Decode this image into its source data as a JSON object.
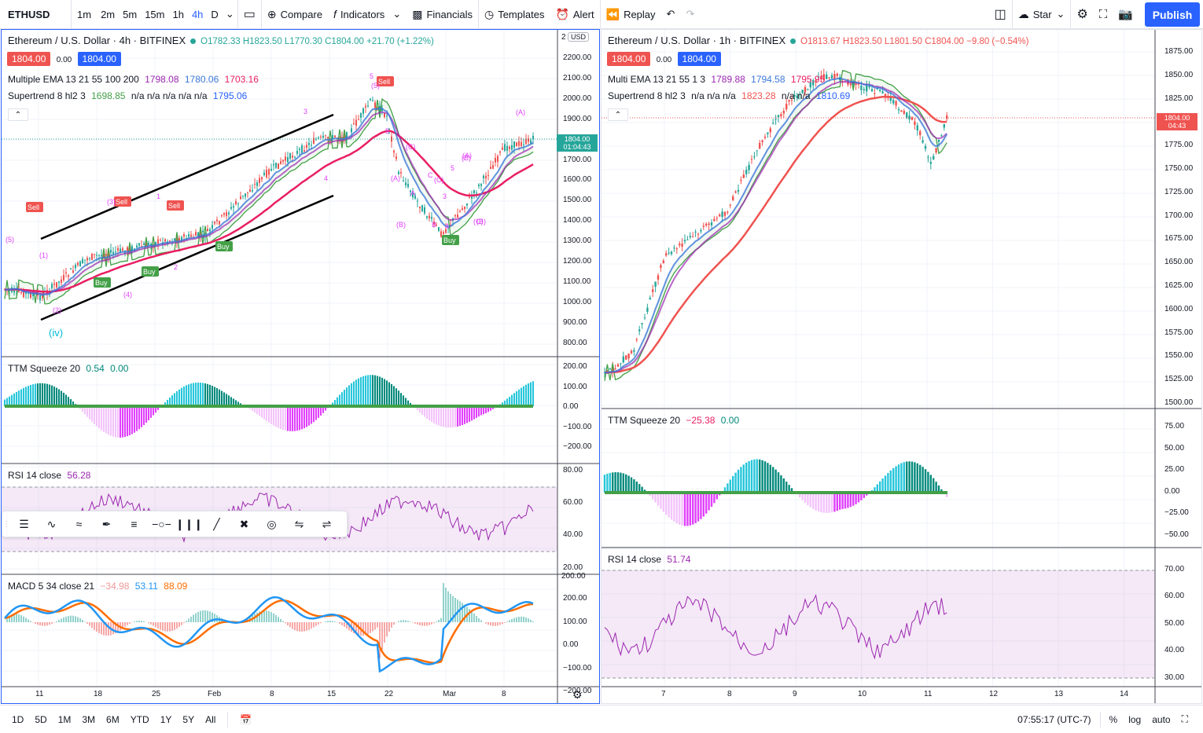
{
  "topbar": {
    "symbol": "ETHUSD",
    "intervals": [
      "1m",
      "2m",
      "5m",
      "15m",
      "1h",
      "4h",
      "D"
    ],
    "active_interval": "4h",
    "compare": "Compare",
    "indicators": "Indicators",
    "financials": "Financials",
    "templates": "Templates",
    "alert": "Alert",
    "replay": "Replay",
    "star": "Star",
    "publish": "Publish"
  },
  "left": {
    "title": "Ethereum / U.S. Dollar · 4h · BITFINEX",
    "ohlc": "O1782.33 H1823.50 L1770.30 C1804.00 +21.70 (+1.22%)",
    "bid": "1804.00",
    "spread": "0.00",
    "ask": "1804.00",
    "ema_label": "Multiple EMA 13 21 55 100 200",
    "ema_values": [
      "1798.08",
      "1780.06",
      "1703.16"
    ],
    "st_label": "Supertrend 8 hl2 3",
    "st_values": [
      "1698.85",
      "n/a n/a n/a n/a n/a",
      "1795.06"
    ],
    "currency": "USD",
    "last_price": "1804.00",
    "countdown": "01:04:43",
    "price_axis": [
      "2200.00",
      "2100.00",
      "2000.00",
      "1900.00",
      "1800.00",
      "1700.00",
      "1600.00",
      "1500.00",
      "1400.00",
      "1300.00",
      "1200.00",
      "1100.00",
      "1000.00",
      "900.00",
      "800.00"
    ],
    "price_axis_top": "2",
    "ttm_label": "TTM Squeeze 20",
    "ttm_values": [
      "0.54",
      "0.00"
    ],
    "ttm_axis": [
      "200.00",
      "100.00",
      "0.00",
      "−100.00",
      "−200.00"
    ],
    "rsi_label": "RSI 14 close",
    "rsi_value": "56.28",
    "rsi_axis": [
      "80.00",
      "60.00",
      "40.00",
      "20.00"
    ],
    "macd_label": "MACD 5 34 close 21",
    "macd_values": [
      "−34.98",
      "53.11",
      "88.09"
    ],
    "macd_axis": [
      "200.00",
      "100.00",
      "0.00",
      "−100.00",
      "−200.00"
    ],
    "macd_axis_top": "200.00",
    "x_axis": [
      "11",
      "18",
      "25",
      "Feb",
      "8",
      "15",
      "22",
      "Mar",
      "8"
    ],
    "wave_labels": [
      "(5)",
      "(iv)",
      "(1)",
      "(2)",
      "(3)",
      "(4)",
      "1",
      "2",
      "3",
      "4",
      "5",
      "(5)",
      "5",
      "(A)",
      "(B)",
      "(C)",
      "A",
      "B",
      "C",
      "(A)",
      "(B)",
      "(C)",
      "3",
      "4",
      "5",
      "(A)",
      "(B)",
      "(C)"
    ],
    "signals": {
      "sell": "Sell",
      "buy": "Buy"
    }
  },
  "right": {
    "title": "Ethereum / U.S. Dollar · 1h · BITFINEX",
    "ohlc": "O1813.67 H1823.50 L1801.50 C1804.00 −9.80 (−0.54%)",
    "bid": "1804.00",
    "spread": "0.00",
    "ask": "1804.00",
    "ema_label": "Multi EMA 13 21 55 1 3",
    "ema_values": [
      "1789.88",
      "1794.58",
      "1795.95"
    ],
    "st_label": "Supertrend 8 hl2 3",
    "st_values": [
      "n/a n/a n/a",
      "1823.28",
      "n/a n/a",
      "1810.69"
    ],
    "last_price": "1804.00",
    "countdown": "04:43",
    "price_axis": [
      "1875.00",
      "1850.00",
      "1825.00",
      "1800.00",
      "1775.00",
      "1750.00",
      "1725.00",
      "1700.00",
      "1675.00",
      "1650.00",
      "1625.00",
      "1600.00",
      "1575.00",
      "1550.00",
      "1525.00",
      "1500.00"
    ],
    "ttm_label": "TTM Squeeze 20",
    "ttm_values": [
      "−25.38",
      "0.00"
    ],
    "ttm_axis": [
      "75.00",
      "50.00",
      "25.00",
      "0.00",
      "−25.00",
      "−50.00"
    ],
    "rsi_label": "RSI 14 close",
    "rsi_value": "51.74",
    "rsi_axis": [
      "70.00",
      "60.00",
      "50.00",
      "40.00",
      "30.00"
    ],
    "x_axis": [
      "7",
      "8",
      "9",
      "10",
      "11",
      "12",
      "13",
      "14"
    ]
  },
  "bottombar": {
    "ranges": [
      "1D",
      "5D",
      "1M",
      "3M",
      "6M",
      "YTD",
      "1Y",
      "5Y",
      "All"
    ],
    "time": "07:55:17 (UTC-7)",
    "percent": "%",
    "log": "log",
    "auto": "auto"
  },
  "colors": {
    "accent": "#2962ff",
    "up": "#26a69a",
    "down": "#ef5350",
    "ema1": "#3c78d8",
    "ema2": "#9c27b0",
    "ema3": "#ef5350",
    "ema_slow": "#e91e63",
    "supertrend_up": "#43a047",
    "supertrend_down": "#ef5350",
    "rsi": "#9c27b0",
    "macd": "#2196f3",
    "signal": "#ff6d00"
  }
}
